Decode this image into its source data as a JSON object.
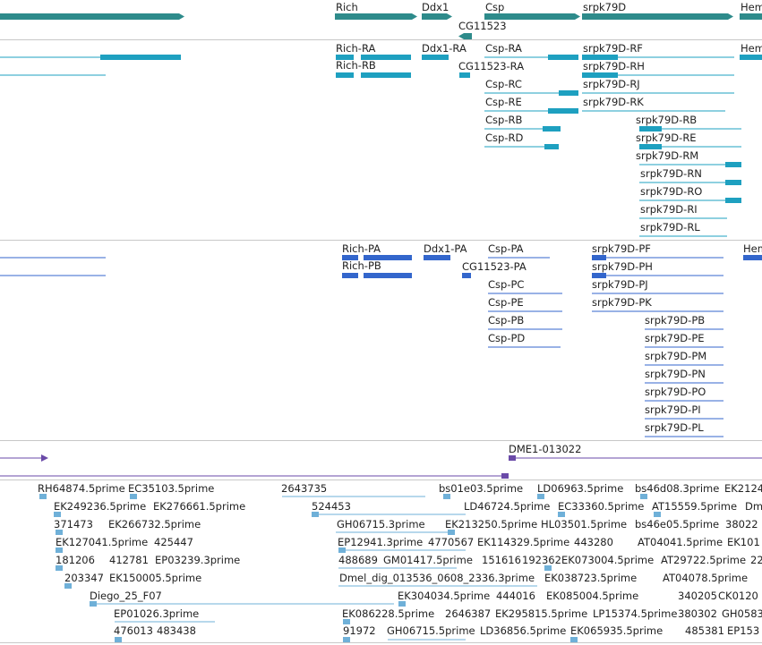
{
  "colors": {
    "gene": "#2e8b8b",
    "transcript": "#1ea0c0",
    "protein": "#3366cc",
    "repeat": "#6a4aa8",
    "est": "#6fb0d8",
    "divider": "#c8c8c8"
  },
  "genes": [
    "Rich",
    "Ddx1",
    "Csp",
    "CG11523",
    "srpk79D",
    "Hem"
  ],
  "transcripts": [
    "Rich-RA",
    "Rich-RB",
    "Ddx1-RA",
    "CG11523-RA",
    "Csp-RA",
    "Csp-RC",
    "Csp-RE",
    "Csp-RB",
    "Csp-RD",
    "srpk79D-RF",
    "srpk79D-RH",
    "srpk79D-RJ",
    "srpk79D-RK",
    "srpk79D-RB",
    "srpk79D-RE",
    "srpk79D-RM",
    "srpk79D-RN",
    "srpk79D-RO",
    "srpk79D-RI",
    "srpk79D-RL",
    "Hem"
  ],
  "proteins": [
    "Rich-PA",
    "Rich-PB",
    "Ddx1-PA",
    "CG11523-PA",
    "Csp-PA",
    "Csp-PC",
    "Csp-PE",
    "Csp-PB",
    "Csp-PD",
    "srpk79D-PF",
    "srpk79D-PH",
    "srpk79D-PJ",
    "srpk79D-PK",
    "srpk79D-PB",
    "srpk79D-PE",
    "srpk79D-PM",
    "srpk79D-PN",
    "srpk79D-PO",
    "srpk79D-PI",
    "srpk79D-PL",
    "Hem"
  ],
  "repeat_label": "DME1-013022",
  "ests": [
    "RH64874.5prime",
    "EC35103.5prime",
    "2643735",
    "bs01e03.5prime",
    "LD06963.5prime",
    "bs46d08.3prime",
    "EK2124",
    "EK249236.5prime",
    "EK276661.5prime",
    "524453",
    "LD46724.5prime",
    "EC33360.5prime",
    "AT15559.5prime",
    "Dm",
    "371473",
    "EK266732.5prime",
    "GH06715.3prime",
    "EK213250.5prime",
    "HL03501.5prime",
    "bs46e05.5prime",
    "38022",
    "EK127041.5prime",
    "425447",
    "EP12941.3prime",
    "4770567",
    "EK114329.5prime",
    "443280",
    "AT04041.5prime",
    "EK101",
    "181206",
    "412781",
    "EP03239.3prime",
    "488689",
    "GM01417.5prime",
    "151616",
    "192362",
    "EK073004.5prime",
    "AT29722.5prime",
    "22",
    "203347",
    "EK150005.5prime",
    "Dmel_dig_013536_0608_2336.3prime",
    "EK038723.5prime",
    "AT04078.5prime",
    "Diego_25_F07",
    "EK304034.5prime",
    "444016",
    "EK085004.5prime",
    "340205",
    "CK0120",
    "EP01026.3prime",
    "EK086228.5prime",
    "2646387",
    "EK295815.5prime",
    "LP15374.5prime",
    "380302",
    "GH0583",
    "476013",
    "483438",
    "91972",
    "GH06715.5prime",
    "LD36856.5prime",
    "EK065935.5prime",
    "485381",
    "EP153"
  ]
}
